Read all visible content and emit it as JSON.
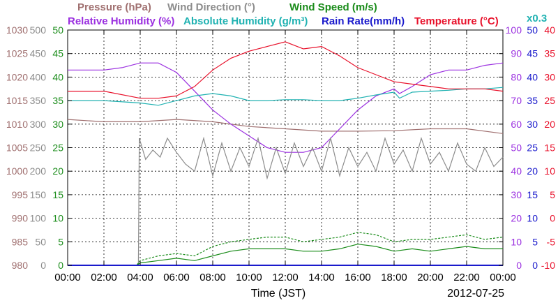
{
  "chart_data": {
    "type": "line",
    "xlabel": "Time (JST)",
    "date_label": "2012-07-25",
    "x_range": [
      0,
      24
    ],
    "x_tick_labels": [
      "00:00",
      "02:00",
      "04:00",
      "06:00",
      "08:00",
      "10:00",
      "12:00",
      "14:00",
      "16:00",
      "18:00",
      "20:00",
      "22:00",
      "00:00"
    ],
    "grid": true,
    "legend": [
      {
        "text": "Pressure (hPa)",
        "color": "#a07070"
      },
      {
        "text": "Wind Direction (°)",
        "color": "#8c8c8c"
      },
      {
        "text": "Wind Speed (m/s)",
        "color": "#1a8c1a"
      },
      {
        "text": "Relative Humidity (%)",
        "color": "#9b30e0"
      },
      {
        "text": "Absolute Humidity (g/m³)",
        "color": "#20b2b2"
      },
      {
        "text": "Rain Rate(mm/h)",
        "color": "#1a1acc"
      },
      {
        "text": "Temperature (°C)",
        "color": "#e8102a"
      },
      {
        "text": "x0.3",
        "color": "#20b2b2"
      }
    ],
    "axes": {
      "pressure": {
        "label_color": "#a07070",
        "range": [
          980,
          1030
        ],
        "ticks": [
          "1030",
          "1025",
          "1020",
          "1015",
          "1010",
          "1005",
          "1000",
          "995",
          "990",
          "985",
          "980"
        ]
      },
      "wind_direction": {
        "label_color": "#8c8c8c",
        "range": [
          0,
          500
        ],
        "ticks": [
          "500",
          "450",
          "400",
          "350",
          "300",
          "250",
          "200",
          "150",
          "100",
          "50",
          "0"
        ]
      },
      "wind_speed": {
        "label_color": "#1a8c1a",
        "range": [
          0,
          50
        ],
        "ticks": [
          "50",
          "45",
          "40",
          "35",
          "30",
          "25",
          "20",
          "15",
          "10",
          "5",
          "0"
        ]
      },
      "relative_humidity": {
        "label_color": "#9b30e0",
        "range": [
          0,
          100
        ],
        "ticks": [
          "100",
          "90",
          "80",
          "70",
          "60",
          "50",
          "40",
          "30",
          "20",
          "10",
          "0"
        ]
      },
      "rain_rate": {
        "label_color": "#1a1acc",
        "range": [
          0,
          50
        ],
        "ticks": [
          "50",
          "45",
          "40",
          "35",
          "30",
          "25",
          "20",
          "15",
          "10",
          "5",
          "0"
        ]
      },
      "temperature": {
        "label_color": "#e8102a",
        "range": [
          -10,
          40
        ],
        "ticks": [
          "40",
          "35",
          "30",
          "25",
          "20",
          "15",
          "10",
          "5",
          "0",
          "-5",
          "-10"
        ]
      }
    },
    "series": [
      {
        "name": "Pressure (hPa)",
        "axis": "pressure",
        "color": "#a07070",
        "x": [
          0,
          2,
          4,
          6,
          8,
          10,
          12,
          14,
          16,
          18,
          20,
          22,
          24
        ],
        "values": [
          1011,
          1010.5,
          1010.5,
          1011,
          1010.5,
          1009.5,
          1009,
          1008.5,
          1008.5,
          1008.6,
          1009,
          1009,
          1008
        ]
      },
      {
        "name": "Relative Humidity (%)",
        "axis": "relative_humidity",
        "color": "#9b30e0",
        "x": [
          0,
          2,
          3,
          4,
          5,
          6,
          6.5,
          7,
          7.5,
          8,
          9,
          10,
          11,
          12,
          13,
          14,
          15,
          16,
          17,
          18,
          18.3,
          19,
          20,
          21,
          22,
          23,
          24
        ],
        "values": [
          83,
          83,
          84,
          86,
          86,
          82,
          78,
          74,
          70,
          66,
          60,
          55,
          50,
          48,
          48,
          50,
          58,
          66,
          72,
          75,
          73,
          76,
          81,
          83,
          83,
          85,
          86
        ]
      },
      {
        "name": "Absolute Humidity (g/m³)",
        "axis": "wind_direction",
        "color": "#20b2b2",
        "x": [
          0,
          2,
          4,
          5,
          6,
          7,
          8,
          9,
          10,
          11,
          12,
          13,
          14,
          15,
          16,
          17,
          18,
          18.3,
          19,
          20,
          21,
          22,
          23,
          24
        ],
        "values": [
          350,
          350,
          345,
          340,
          350,
          360,
          365,
          360,
          350,
          350,
          352,
          352,
          350,
          350,
          355,
          362,
          368,
          355,
          368,
          370,
          372,
          375,
          375,
          378
        ]
      },
      {
        "name": "Temperature (°C)",
        "axis": "temperature",
        "color": "#e8102a",
        "x": [
          0,
          2,
          4,
          5,
          6,
          7,
          8,
          9,
          10,
          11,
          12,
          13,
          14,
          15,
          16,
          17,
          18,
          19,
          20,
          21,
          22,
          23,
          24
        ],
        "values": [
          27,
          27,
          25.5,
          25.5,
          26,
          28,
          31.5,
          34,
          35.5,
          36.5,
          37.5,
          36,
          36.5,
          34.5,
          32,
          30.5,
          29,
          28.5,
          28,
          27.5,
          27.5,
          27.5,
          27
        ]
      },
      {
        "name": "Wind Direction (°)",
        "axis": "wind_direction",
        "color": "#8c8c8c",
        "x": [
          0,
          3.9,
          3.95,
          4.3,
          4.7,
          5.1,
          5.5,
          6.0,
          6.5,
          7.0,
          7.5,
          8.0,
          8.5,
          9.0,
          9.5,
          10.0,
          10.5,
          11.0,
          11.5,
          12.0,
          12.5,
          13.0,
          13.5,
          14.0,
          14.5,
          15.0,
          15.5,
          16.0,
          16.5,
          17.0,
          17.5,
          18.0,
          18.5,
          19.0,
          19.5,
          20.0,
          20.5,
          21.0,
          21.5,
          22.0,
          22.5,
          23.0,
          23.5,
          24.0
        ],
        "values": [
          0,
          0,
          270,
          225,
          245,
          230,
          270,
          240,
          215,
          200,
          270,
          190,
          260,
          200,
          250,
          210,
          270,
          185,
          250,
          195,
          260,
          210,
          250,
          200,
          270,
          190,
          250,
          210,
          240,
          200,
          270,
          215,
          245,
          200,
          270,
          215,
          240,
          200,
          260,
          215,
          200,
          250,
          210,
          230
        ]
      },
      {
        "name": "Wind Speed (m/s)",
        "axis": "wind_speed",
        "color": "#1a8c1a",
        "x": [
          0,
          3.8,
          4,
          5,
          6,
          7,
          8,
          9,
          10,
          11,
          12,
          13,
          14,
          15,
          16,
          17,
          18,
          19,
          20,
          21,
          22,
          23,
          24
        ],
        "values": [
          0,
          0,
          0.5,
          1,
          1.5,
          1,
          2,
          3,
          3.5,
          3.5,
          3.5,
          3,
          3,
          3.5,
          4.5,
          4,
          3,
          3.5,
          3,
          3.5,
          4,
          3.5,
          3.5
        ]
      },
      {
        "name": "Wind Speed gust (m/s)",
        "axis": "wind_speed",
        "color": "#1a8c1a",
        "dashed": true,
        "x": [
          0,
          3.8,
          4,
          5,
          6,
          7,
          8,
          9,
          10,
          11,
          12,
          13,
          14,
          15,
          16,
          17,
          18,
          19,
          20,
          21,
          22,
          23,
          24
        ],
        "values": [
          0,
          0,
          1,
          2,
          2.5,
          2,
          4,
          5,
          5.5,
          6,
          6,
          5,
          5.5,
          6,
          7,
          6.5,
          5,
          5.5,
          5.5,
          6,
          6.5,
          5.5,
          6
        ]
      },
      {
        "name": "Rain Rate(mm/h)",
        "axis": "rain_rate",
        "color": "#1a1acc",
        "x": [
          0,
          24
        ],
        "values": [
          0,
          0
        ]
      }
    ]
  }
}
